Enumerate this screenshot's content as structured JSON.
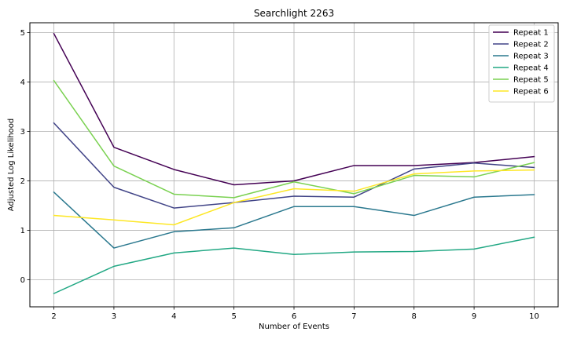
{
  "chart_data": {
    "type": "line",
    "title": "Searchlight 2263",
    "xlabel": "Number of Events",
    "ylabel": "Adjusted Log Likelihood",
    "x": [
      2,
      3,
      4,
      5,
      6,
      7,
      8,
      9,
      10
    ],
    "xlim": [
      1.6,
      10.4
    ],
    "ylim": [
      -0.55,
      5.2
    ],
    "xticks": [
      2,
      3,
      4,
      5,
      6,
      7,
      8,
      9,
      10
    ],
    "yticks": [
      0,
      1,
      2,
      3,
      4,
      5
    ],
    "grid": true,
    "legend_position": "top-right",
    "series": [
      {
        "name": "Repeat 1",
        "color": "#440154",
        "values": [
          4.98,
          2.68,
          2.23,
          1.92,
          2.0,
          2.31,
          2.31,
          2.37,
          2.49
        ]
      },
      {
        "name": "Repeat 2",
        "color": "#414487",
        "values": [
          3.17,
          1.87,
          1.45,
          1.56,
          1.69,
          1.67,
          2.24,
          2.36,
          2.27
        ]
      },
      {
        "name": "Repeat 3",
        "color": "#2a788e",
        "values": [
          1.77,
          0.64,
          0.97,
          1.05,
          1.48,
          1.48,
          1.3,
          1.67,
          1.72
        ]
      },
      {
        "name": "Repeat 4",
        "color": "#22a884",
        "values": [
          -0.28,
          0.27,
          0.54,
          0.64,
          0.51,
          0.56,
          0.57,
          0.62,
          0.86
        ]
      },
      {
        "name": "Repeat 5",
        "color": "#7ad151",
        "values": [
          4.03,
          2.3,
          1.73,
          1.66,
          1.98,
          1.74,
          2.11,
          2.08,
          2.37
        ]
      },
      {
        "name": "Repeat 6",
        "color": "#fde725",
        "values": [
          1.3,
          1.21,
          1.11,
          1.56,
          1.84,
          1.79,
          2.14,
          2.2,
          2.22
        ]
      }
    ]
  }
}
